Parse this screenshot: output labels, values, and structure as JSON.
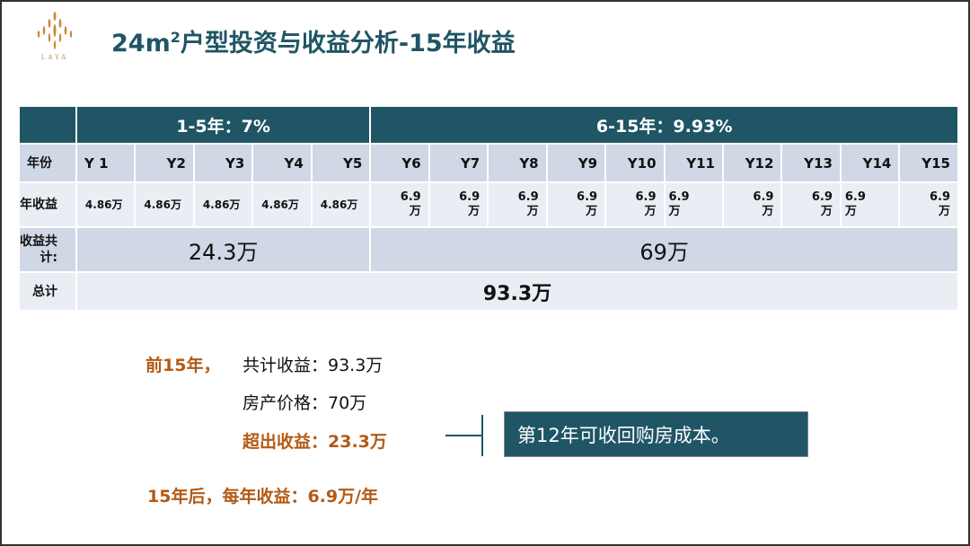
{
  "logo": {
    "text": "LAYA"
  },
  "title": {
    "main": "24m",
    "sup": "2",
    "rest": "户型投资与收益分析-15年收益"
  },
  "table": {
    "period1": "1-5年：7%",
    "period2": "6-15年：9.93%",
    "year_label": "年份",
    "years": [
      "Y 1",
      "Y2",
      "Y3",
      "Y4",
      "Y5",
      "Y6",
      "Y7",
      "Y8",
      "Y9",
      "Y10",
      "Y11",
      "Y12",
      "Y13",
      "Y14",
      "Y15"
    ],
    "income_label": "年收益",
    "income": [
      "4.86万",
      "4.86万",
      "4.86万",
      "4.86万",
      "4.86万",
      "6.9万",
      "6.9万",
      "6.9万",
      "6.9万",
      "6.9万",
      "6.9万",
      "6.9万",
      "6.9万",
      "6.9万",
      "6.9万"
    ],
    "subtotal_label": "收益共计:",
    "subtotal1": "24.3万",
    "subtotal2": "69万",
    "total_label": "总计",
    "total": "93.3万"
  },
  "summary": {
    "first15": "前15年，",
    "total_income": "共计收益：93.3万",
    "price": "房产价格：70万",
    "excess": "超出收益：23.3万",
    "after15": "15年后，每年收益：6.9万/年"
  },
  "callout": "第12年可收回购房成本。",
  "colors": {
    "header": "#1f5565",
    "accent": "#b35a14",
    "logo": "#c8893a"
  }
}
